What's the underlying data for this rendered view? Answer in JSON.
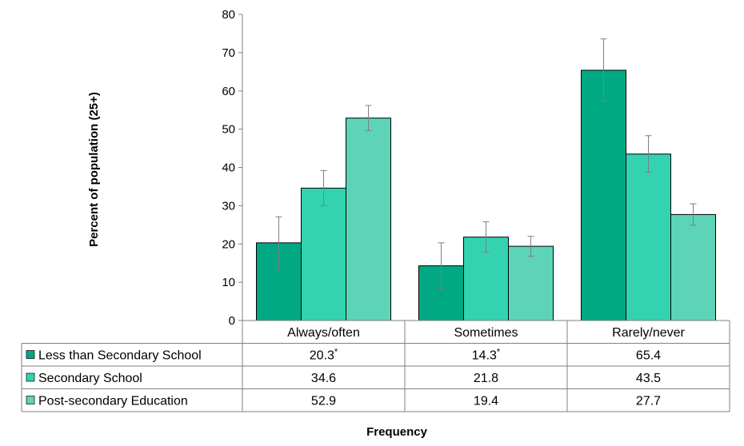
{
  "chart_data": {
    "type": "bar",
    "ylabel": "Percent of population (25+)",
    "xlabel": "Frequency",
    "ylim": [
      0,
      80
    ],
    "yticks": [
      0,
      10,
      20,
      30,
      40,
      50,
      60,
      70,
      80
    ],
    "categories": [
      "Always/often",
      "Sometimes",
      "Rarely/never"
    ],
    "series": [
      {
        "name": "Less than Secondary School",
        "color": "#00a884",
        "values": [
          20.3,
          14.3,
          65.4
        ],
        "labels": [
          "20.3",
          "14.3",
          "65.4"
        ],
        "flags": [
          "*",
          "*",
          ""
        ],
        "error_low": [
          13.5,
          8.3,
          57.3
        ],
        "error_high": [
          27.1,
          20.3,
          73.6
        ]
      },
      {
        "name": "Secondary School",
        "color": "#33d3b2",
        "values": [
          34.6,
          21.8,
          43.5
        ],
        "labels": [
          "34.6",
          "21.8",
          "43.5"
        ],
        "flags": [
          "",
          "",
          ""
        ],
        "error_low": [
          30.0,
          17.8,
          38.8
        ],
        "error_high": [
          39.2,
          25.8,
          48.3
        ]
      },
      {
        "name": "Post-secondary Education",
        "color": "#5dd4b7",
        "values": [
          52.9,
          19.4,
          27.7
        ],
        "labels": [
          "52.9",
          "19.4",
          "27.7"
        ],
        "flags": [
          "",
          "",
          ""
        ],
        "error_low": [
          49.6,
          16.8,
          24.9
        ],
        "error_high": [
          56.2,
          22.0,
          30.5
        ]
      }
    ],
    "legend": "data-table"
  }
}
